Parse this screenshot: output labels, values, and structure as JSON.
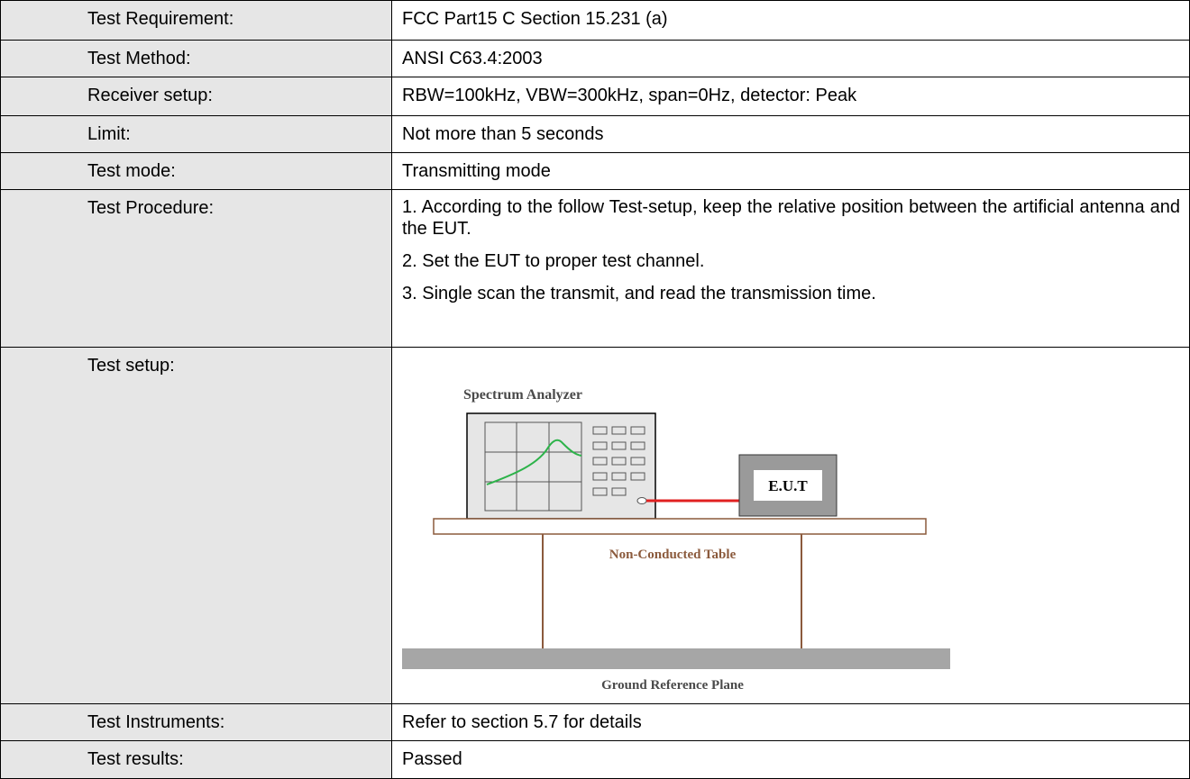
{
  "table": {
    "rows": [
      {
        "label": "Test Requirement:",
        "value": "FCC Part15 C Section 15.231 (a)"
      },
      {
        "label": "Test Method:",
        "value": "ANSI C63.4:2003"
      },
      {
        "label": "Receiver setup:",
        "value": "RBW=100kHz, VBW=300kHz, span=0Hz, detector: Peak"
      },
      {
        "label": "Limit:",
        "value": "Not more than 5 seconds"
      },
      {
        "label": "Test mode:",
        "value": "Transmitting mode"
      },
      {
        "label": "Test Procedure:",
        "paragraphs": [
          "1. According to the follow Test-setup, keep the relative position between the artificial antenna and the EUT.",
          "2. Set the EUT to proper test channel.",
          "3. Single scan the transmit, and read the transmission time."
        ]
      },
      {
        "label": "Test setup:",
        "diagram": {
          "analyzer": "Spectrum Analyzer",
          "eut": "E.U.T",
          "table": "Non-Conducted Table",
          "ground": "Ground Reference Plane"
        }
      },
      {
        "label": "Test Instruments:",
        "value": "Refer to section 5.7 for details"
      },
      {
        "label": "Test results:",
        "value": "Passed"
      }
    ]
  }
}
